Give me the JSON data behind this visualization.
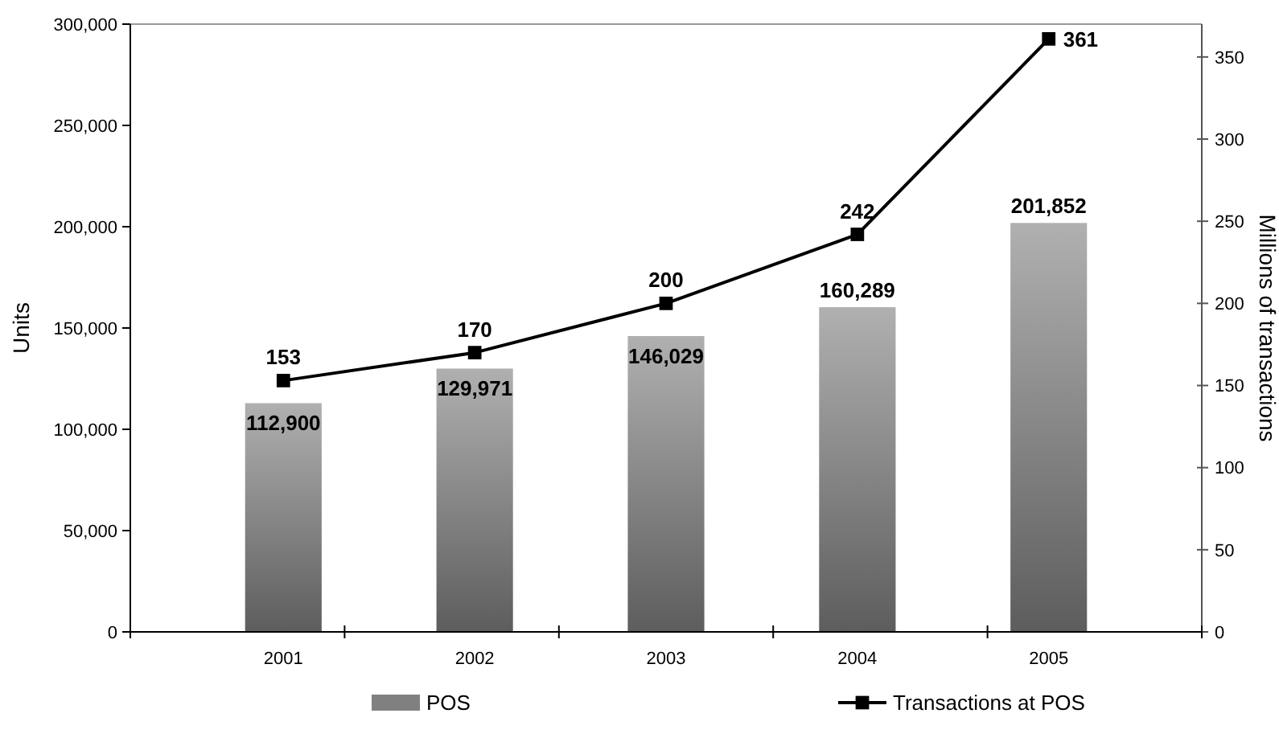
{
  "chart_data": {
    "type": "bar",
    "ylabel": "Units",
    "y2label": "Millions of transactions",
    "categories": [
      "2001",
      "2002",
      "2003",
      "2004",
      "2005"
    ],
    "series": [
      {
        "name": "POS",
        "color": "#808080",
        "values": [
          112900,
          129971,
          146029,
          160289,
          201852
        ],
        "value_labels": [
          "112,900",
          "129,971",
          "146,029",
          "160,289",
          "201,852"
        ]
      },
      {
        "name": "Transactions at POS",
        "type": "line",
        "axis": "y2",
        "color": "#000000",
        "marker": "square",
        "values": [
          153,
          170,
          200,
          242,
          361
        ],
        "value_labels": [
          "153",
          "170",
          "200",
          "242",
          "361"
        ]
      }
    ],
    "ylim": [
      0,
      300000
    ],
    "yticks": [
      {
        "value": 0,
        "label": "0"
      },
      {
        "value": 50000,
        "label": "50,000"
      },
      {
        "value": 100000,
        "label": "100,000"
      },
      {
        "value": 150000,
        "label": "150,000"
      },
      {
        "value": 200000,
        "label": "200,000"
      },
      {
        "value": 250000,
        "label": "250,000"
      },
      {
        "value": 300000,
        "label": "300,000"
      }
    ],
    "y2lim": [
      0,
      370
    ],
    "y2ticks": [
      0,
      50,
      100,
      150,
      200,
      250,
      300,
      350
    ],
    "legend": "bottom",
    "grid": false
  }
}
